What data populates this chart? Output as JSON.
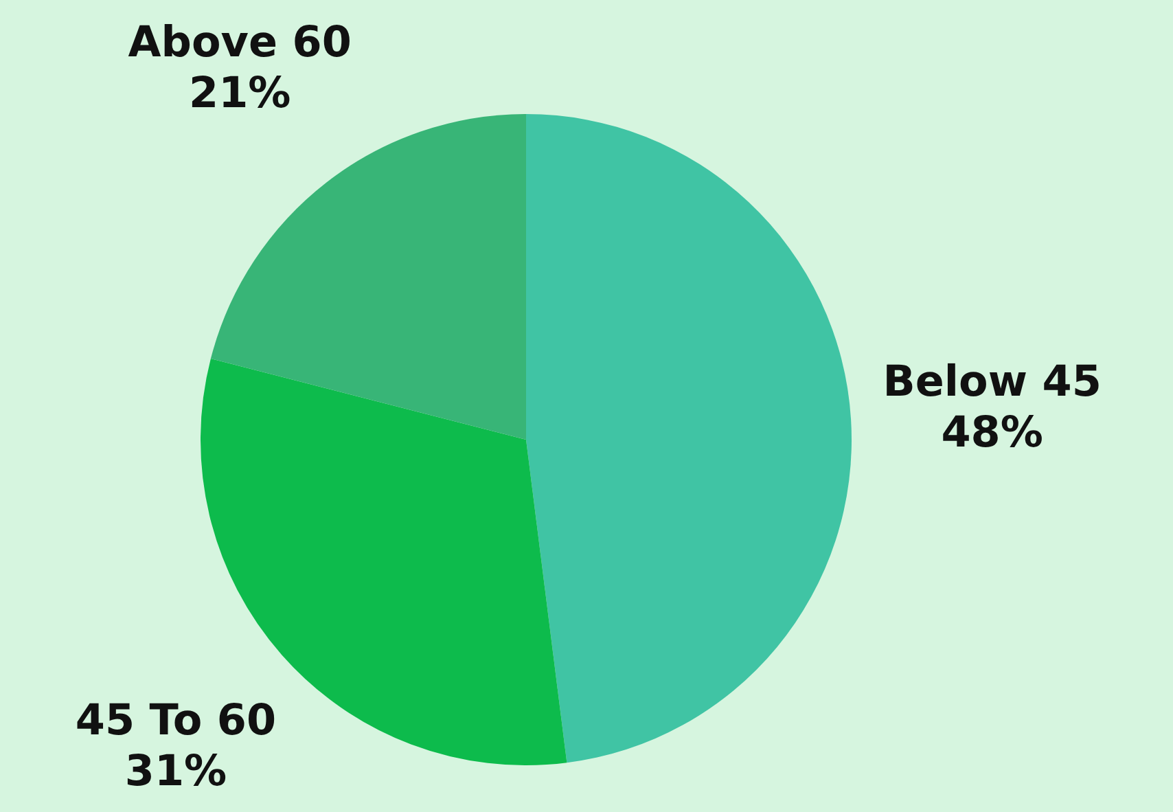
{
  "chart_data": {
    "type": "pie",
    "categories": [
      "Below 45",
      "45 To 60",
      "Above 60"
    ],
    "values": [
      48,
      31,
      21
    ],
    "value_labels": [
      "48%",
      "31%",
      "21%"
    ],
    "colors": [
      "#40c4a4",
      "#0dbb4c",
      "#38b577"
    ],
    "legend": false
  }
}
